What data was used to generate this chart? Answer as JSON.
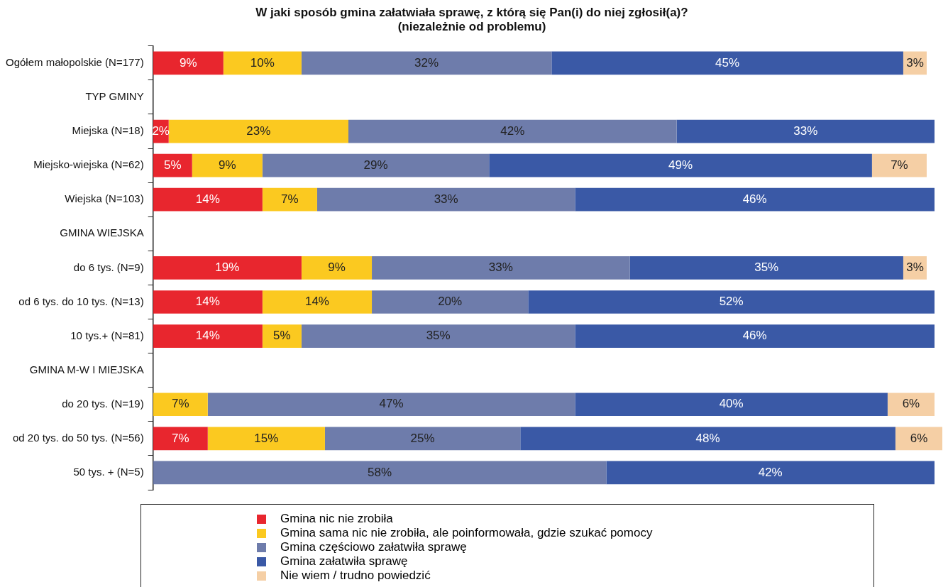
{
  "chart_data": {
    "type": "bar",
    "orientation": "horizontal",
    "stacked": true,
    "title": "W jaki sposób gmina załatwiała sprawę, z którą się Pan(i) do niej zgłosił(a)?\n(niezależnie od problemu)",
    "categories": [
      "Ogółem małopolskie (N=177)",
      "TYP GMINY",
      "Miejska (N=18)",
      "Miejsko-wiejska (N=62)",
      "Wiejska (N=103)",
      "GMINA WIEJSKA",
      "do 6 tys. (N=9)",
      "od 6 tys. do 10 tys. (N=13)",
      "10 tys.+ (N=81)",
      "GMINA M-W I MIEJSKA",
      "do 20 tys. (N=19)",
      "od 20 tys. do 50 tys. (N=56)",
      "50 tys. + (N=5)"
    ],
    "series": [
      {
        "name": "Gmina nic nie zrobiła",
        "color": "#e8262e",
        "values": [
          9,
          null,
          2,
          5,
          14,
          null,
          19,
          14,
          14,
          null,
          null,
          7,
          null
        ],
        "value_labels": [
          "9%",
          null,
          "2%",
          "5%",
          "14%",
          null,
          "19%",
          "14%",
          "14%",
          null,
          null,
          "7%",
          null
        ]
      },
      {
        "name": "Gmina sama nic nie zrobiła, ale poinformowała, gdzie szukać pomocy",
        "color": "#fbc920",
        "values": [
          10,
          null,
          23,
          9,
          7,
          null,
          9,
          14,
          5,
          null,
          7,
          15,
          null
        ],
        "value_labels": [
          "10%",
          null,
          "23%",
          "9%",
          "7%",
          null,
          "9%",
          "14%",
          "5%",
          null,
          "7%",
          "15%",
          null
        ]
      },
      {
        "name": "Gmina częściowo załatwiła sprawę",
        "color": "#6e7cab",
        "values": [
          32,
          null,
          42,
          29,
          33,
          null,
          33,
          20,
          35,
          null,
          47,
          25,
          58
        ],
        "value_labels": [
          "32%",
          null,
          "42%",
          "29%",
          "33%",
          null,
          "33%",
          "20%",
          "35%",
          null,
          "47%",
          "25%",
          "58%"
        ]
      },
      {
        "name": "Gmina załatwiła sprawę",
        "color": "#3a59a6",
        "values": [
          45,
          null,
          33,
          49,
          46,
          null,
          35,
          52,
          46,
          null,
          40,
          48,
          42
        ],
        "value_labels": [
          "45%",
          null,
          "33%",
          "49%",
          "46%",
          null,
          "35%",
          "52%",
          "46%",
          null,
          "40%",
          "48%",
          "42%"
        ]
      },
      {
        "name": "Nie wiem / trudno powiedzić",
        "color": "#f5cfa5",
        "values": [
          3,
          null,
          null,
          7,
          null,
          null,
          3,
          null,
          null,
          null,
          6,
          6,
          null
        ],
        "value_labels": [
          "3%",
          null,
          null,
          "7%",
          null,
          null,
          "3%",
          null,
          null,
          null,
          "6%",
          "6%",
          null
        ]
      }
    ],
    "tick_labels": "y",
    "legend": "bottom"
  }
}
